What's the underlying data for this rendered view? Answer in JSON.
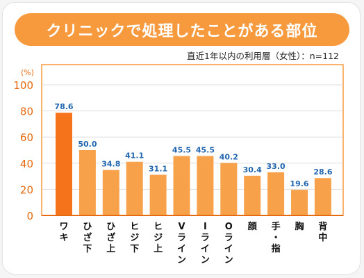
{
  "title": "クリニックで処理したことがある部位",
  "subtitle": "直近1年以内の利用層（女性）：n=112",
  "colors": {
    "title_bg": "#f79a3e",
    "bar_first": "#f5731a",
    "bar": "#f7a14a",
    "value_label": "#2166b0",
    "axis": "#e66a10",
    "frame": "#f79a3e",
    "tick_label": "#e66a10"
  },
  "chart_data": {
    "type": "bar",
    "ylabel": "(%)",
    "ylim": [
      0,
      100
    ],
    "yticks": [
      0,
      20,
      40,
      60,
      80,
      100
    ],
    "grid": true,
    "categories": [
      "ワキ",
      "ひざ下",
      "ひざ上",
      "ヒジ下",
      "ヒジ上",
      "Vライン",
      "Iライン",
      "Oライン",
      "顔",
      "手・指",
      "胸",
      "背中"
    ],
    "values": [
      78.6,
      50.0,
      34.8,
      41.1,
      31.1,
      45.5,
      45.5,
      40.2,
      30.4,
      33.0,
      19.6,
      28.6
    ],
    "value_labels": [
      "78.6",
      "50.0",
      "34.8",
      "41.1",
      "31.1",
      "45.5",
      "45.5",
      "40.2",
      "30.4",
      "33.0",
      "19.6",
      "28.6"
    ]
  }
}
